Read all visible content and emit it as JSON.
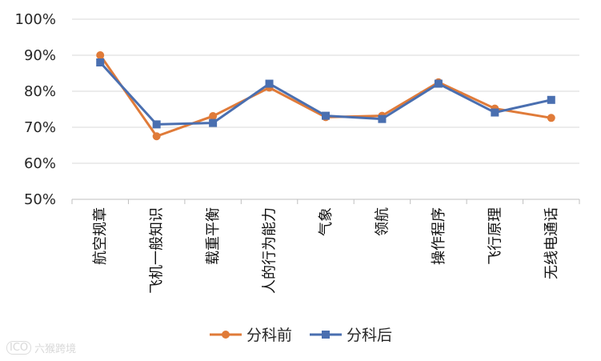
{
  "chart_data": {
    "type": "line",
    "title": "",
    "xlabel": "",
    "ylabel": "",
    "ylim": [
      50,
      100
    ],
    "yticks": [
      "50%",
      "60%",
      "70%",
      "80%",
      "90%",
      "100%"
    ],
    "grid": true,
    "legend_position": "bottom",
    "categories": [
      "航空规章",
      "飞机一般知识",
      "载重平衡",
      "人的行为能力",
      "气象",
      "领航",
      "操作程序",
      "飞行原理",
      "无线电通话"
    ],
    "series": [
      {
        "name": "分科前",
        "color": "#e07b39",
        "marker": "circle",
        "values": [
          90.0,
          67.5,
          73.1,
          81.0,
          72.8,
          73.2,
          82.5,
          75.2,
          72.6
        ]
      },
      {
        "name": "分科后",
        "color": "#4a6fb0",
        "marker": "square",
        "values": [
          88.0,
          70.8,
          71.2,
          82.1,
          73.2,
          72.3,
          82.1,
          74.1,
          77.6
        ]
      }
    ]
  },
  "watermark": {
    "logo": "ICO",
    "text": "六猴跨境"
  }
}
